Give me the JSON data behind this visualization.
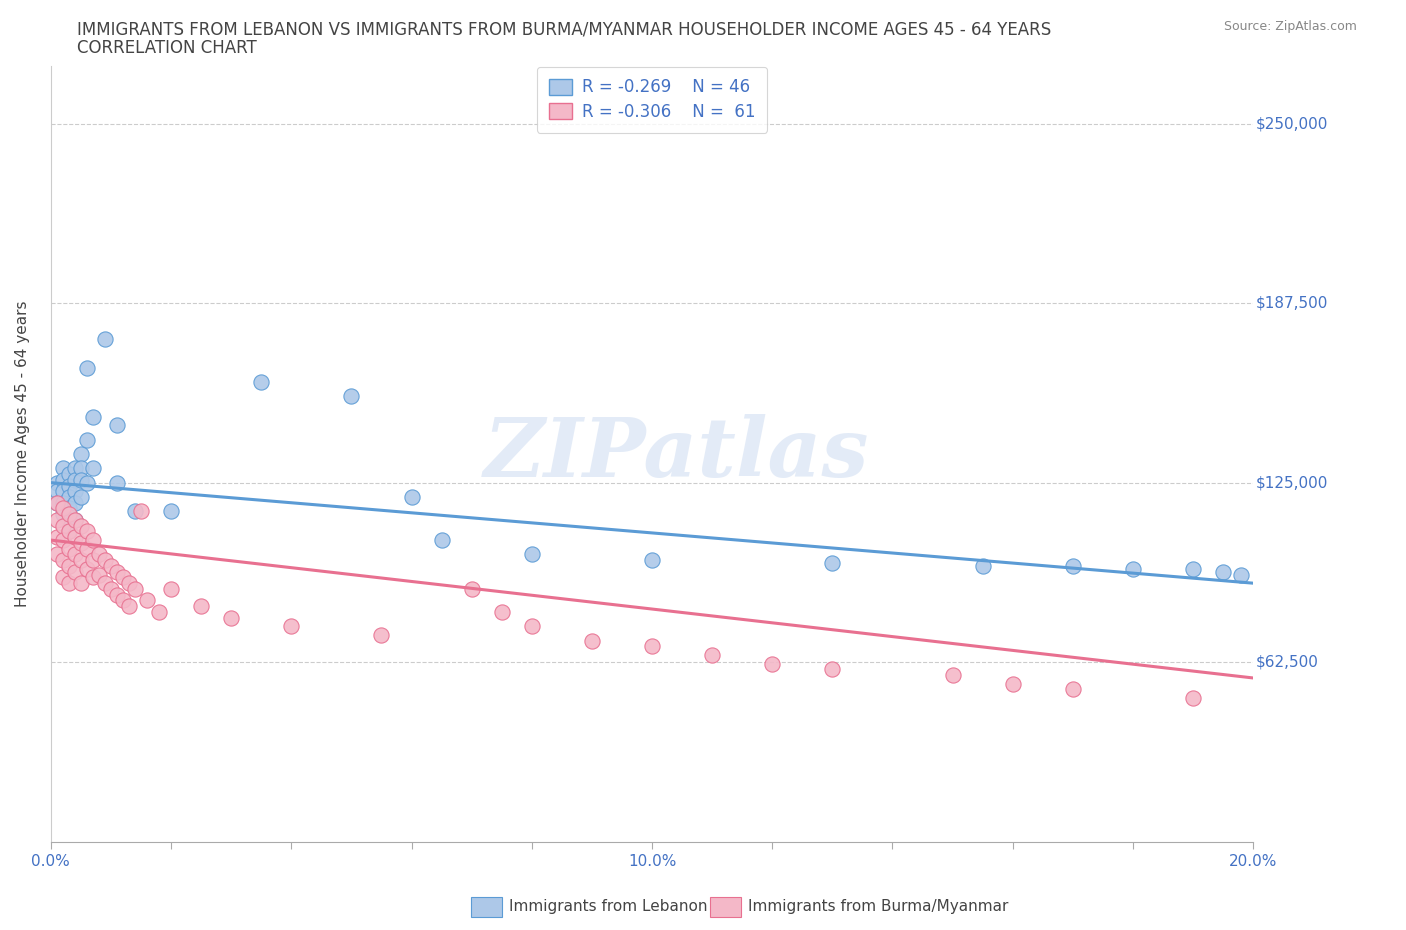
{
  "title_line1": "IMMIGRANTS FROM LEBANON VS IMMIGRANTS FROM BURMA/MYANMAR HOUSEHOLDER INCOME AGES 45 - 64 YEARS",
  "title_line2": "CORRELATION CHART",
  "source_text": "Source: ZipAtlas.com",
  "ylabel": "Householder Income Ages 45 - 64 years",
  "xlim": [
    0.0,
    0.2
  ],
  "ylim": [
    0,
    270000
  ],
  "yticks": [
    62500,
    125000,
    187500,
    250000
  ],
  "ytick_labels": [
    "$62,500",
    "$125,000",
    "$187,500",
    "$250,000"
  ],
  "watermark_text": "ZIPatlas",
  "lebanon_fill_color": "#adc8e8",
  "lebanon_edge_color": "#5b9bd5",
  "burma_fill_color": "#f4b8c8",
  "burma_edge_color": "#e87090",
  "legend_label_lebanon": "Immigrants from Lebanon",
  "legend_label_burma": "Immigrants from Burma/Myanmar",
  "legend_R_lebanon": "-0.269",
  "legend_N_lebanon": "46",
  "legend_R_burma": "-0.306",
  "legend_N_burma": "61",
  "lebanon_scatter_x": [
    0.001,
    0.001,
    0.001,
    0.002,
    0.002,
    0.002,
    0.002,
    0.002,
    0.003,
    0.003,
    0.003,
    0.003,
    0.003,
    0.003,
    0.004,
    0.004,
    0.004,
    0.004,
    0.004,
    0.005,
    0.005,
    0.005,
    0.005,
    0.006,
    0.006,
    0.006,
    0.007,
    0.007,
    0.009,
    0.011,
    0.011,
    0.014,
    0.02,
    0.035,
    0.05,
    0.06,
    0.065,
    0.08,
    0.1,
    0.13,
    0.155,
    0.17,
    0.18,
    0.19,
    0.195,
    0.198
  ],
  "lebanon_scatter_y": [
    125000,
    122000,
    118000,
    130000,
    126000,
    122000,
    118000,
    114000,
    128000,
    124000,
    120000,
    116000,
    112000,
    108000,
    130000,
    126000,
    122000,
    118000,
    112000,
    135000,
    130000,
    126000,
    120000,
    140000,
    165000,
    125000,
    148000,
    130000,
    175000,
    145000,
    125000,
    115000,
    115000,
    160000,
    155000,
    120000,
    105000,
    100000,
    98000,
    97000,
    96000,
    96000,
    95000,
    95000,
    94000,
    93000
  ],
  "burma_scatter_x": [
    0.001,
    0.001,
    0.001,
    0.001,
    0.002,
    0.002,
    0.002,
    0.002,
    0.002,
    0.003,
    0.003,
    0.003,
    0.003,
    0.003,
    0.004,
    0.004,
    0.004,
    0.004,
    0.005,
    0.005,
    0.005,
    0.005,
    0.006,
    0.006,
    0.006,
    0.007,
    0.007,
    0.007,
    0.008,
    0.008,
    0.009,
    0.009,
    0.01,
    0.01,
    0.011,
    0.011,
    0.012,
    0.012,
    0.013,
    0.013,
    0.014,
    0.015,
    0.016,
    0.018,
    0.02,
    0.025,
    0.03,
    0.04,
    0.055,
    0.07,
    0.075,
    0.08,
    0.09,
    0.1,
    0.11,
    0.12,
    0.13,
    0.15,
    0.16,
    0.17,
    0.19
  ],
  "burma_scatter_y": [
    118000,
    112000,
    106000,
    100000,
    116000,
    110000,
    105000,
    98000,
    92000,
    114000,
    108000,
    102000,
    96000,
    90000,
    112000,
    106000,
    100000,
    94000,
    110000,
    104000,
    98000,
    90000,
    108000,
    102000,
    95000,
    105000,
    98000,
    92000,
    100000,
    93000,
    98000,
    90000,
    96000,
    88000,
    94000,
    86000,
    92000,
    84000,
    90000,
    82000,
    88000,
    115000,
    84000,
    80000,
    88000,
    82000,
    78000,
    75000,
    72000,
    88000,
    80000,
    75000,
    70000,
    68000,
    65000,
    62000,
    60000,
    58000,
    55000,
    53000,
    50000
  ],
  "lebanon_trendline_x": [
    0.0,
    0.2
  ],
  "lebanon_trendline_y": [
    125000,
    90000
  ],
  "burma_trendline_x": [
    0.0,
    0.2
  ],
  "burma_trendline_y": [
    105000,
    57000
  ],
  "grid_color": "#cccccc",
  "bg_color": "#ffffff",
  "text_color_dark": "#444444",
  "axis_label_color": "#4472c4",
  "title_color": "#444444",
  "source_color": "#888888"
}
